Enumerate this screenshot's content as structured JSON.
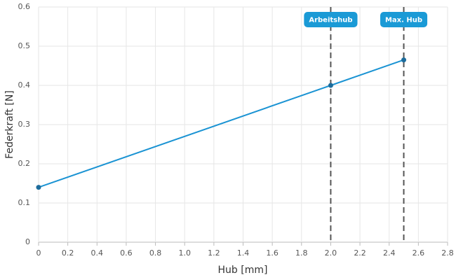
{
  "chart_data": {
    "type": "line",
    "x_label": "Hub [mm]",
    "y_label": "Federkraft [N]",
    "x": [
      0,
      2,
      2.5
    ],
    "series": [
      {
        "name": "Federkraft",
        "color": "#1a93d3",
        "values": [
          0.14,
          0.4,
          0.465
        ]
      }
    ],
    "markers": [
      {
        "x": 2,
        "label": "Arbeitshub"
      },
      {
        "x": 2.5,
        "label": "Max. Hub"
      }
    ],
    "xlim": [
      0,
      2.8
    ],
    "xticks": [
      0,
      0.2,
      0.4,
      0.6,
      0.8,
      {
        "value": 1,
        "label": "1.0"
      },
      1.2,
      1.4,
      1.6,
      1.8,
      {
        "value": 2,
        "label": "2.0"
      },
      2.2,
      2.4,
      2.6,
      2.8
    ],
    "ylim": [
      0,
      0.6
    ],
    "yticks": [
      0,
      0.1,
      0.2,
      0.3,
      0.4,
      0.5,
      0.6
    ],
    "grid": true
  }
}
